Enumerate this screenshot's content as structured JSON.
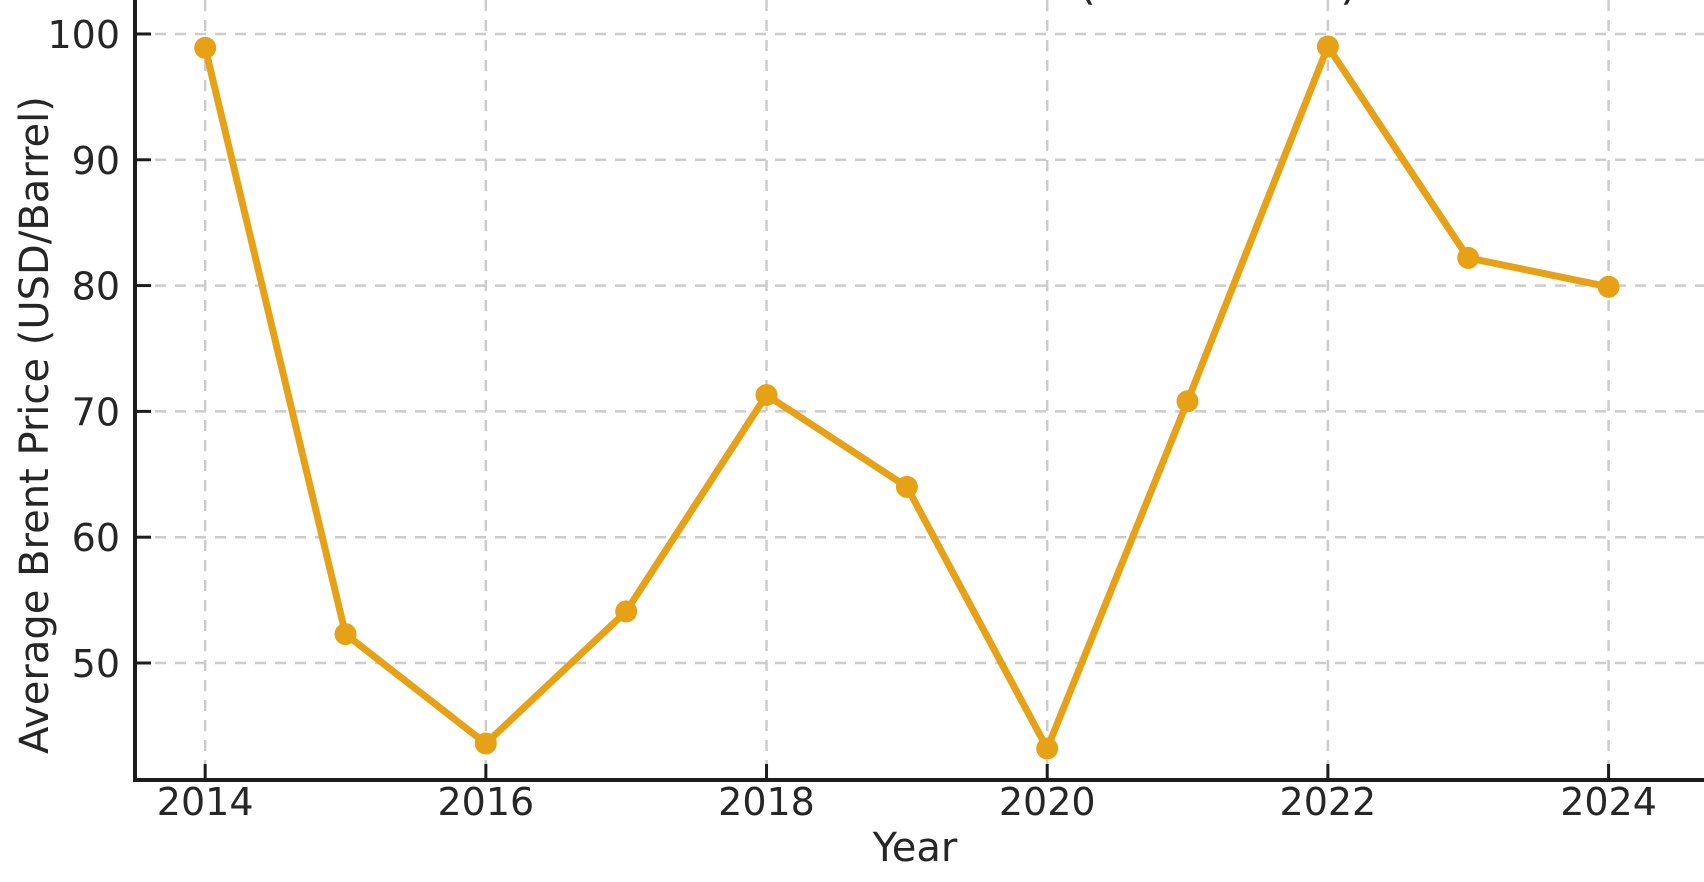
{
  "figure": {
    "background": "#ffffff",
    "cropped_title_fragments": [
      "(",
      ")"
    ]
  },
  "chart_data": {
    "type": "line",
    "title": "",
    "xlabel": "Year",
    "ylabel": "Average Brent Price (USD/Barrel)",
    "x": [
      2014,
      2015,
      2016,
      2017,
      2018,
      2019,
      2020,
      2021,
      2022,
      2023,
      2024
    ],
    "series": [
      {
        "name": "Average Brent Price",
        "values": [
          98.9,
          52.3,
          43.6,
          54.1,
          71.3,
          64.0,
          43.2,
          70.8,
          99.0,
          82.2,
          79.9
        ]
      }
    ],
    "x_ticks": [
      2014,
      2016,
      2018,
      2020,
      2022,
      2024
    ],
    "y_ticks": [
      50,
      60,
      70,
      80,
      90,
      100
    ],
    "xlim": [
      2013.5,
      2024.68
    ],
    "ylim": [
      40.7,
      102.7
    ],
    "grid": true,
    "grid_style": "dashed",
    "legend": "none",
    "marker": "circle",
    "colors": {
      "line": "#E6A117",
      "marker": "#E6A117",
      "grid": "#CCCCCC",
      "spine": "#1C1C1C",
      "tick": "#1C1C1C",
      "text": "#262626"
    }
  }
}
